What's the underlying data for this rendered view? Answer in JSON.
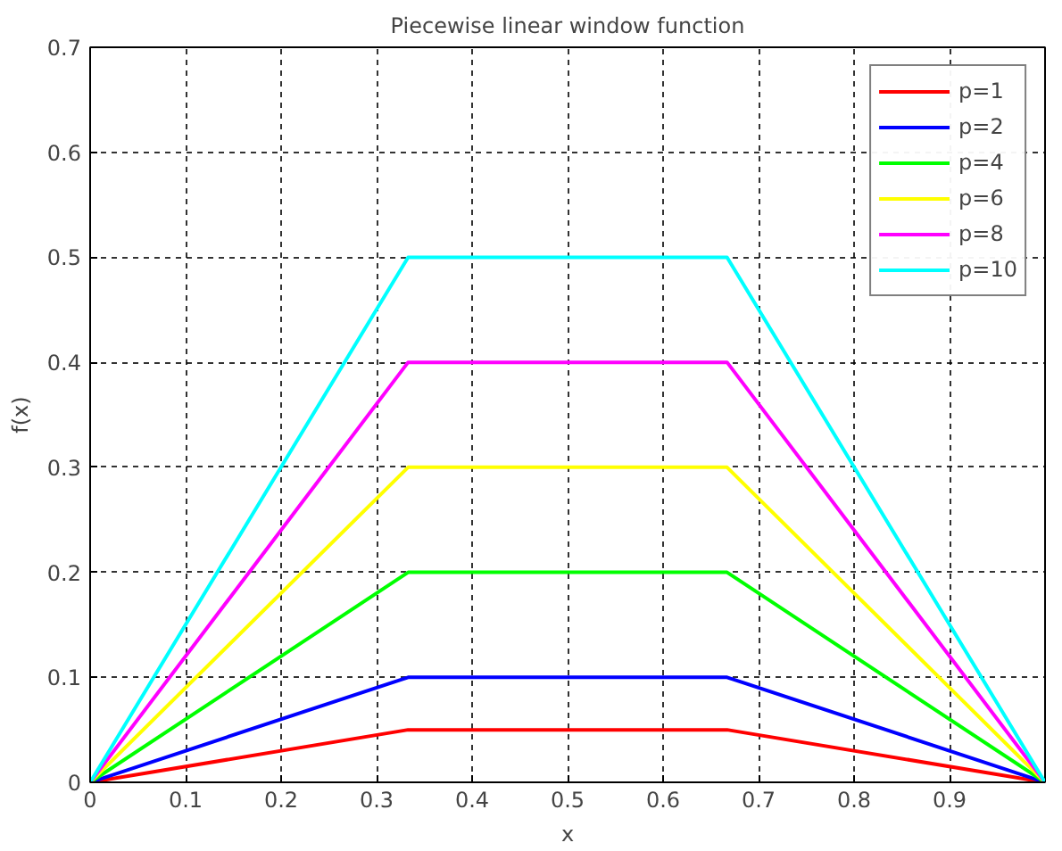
{
  "chart_data": {
    "type": "line",
    "title": "Piecewise linear window function",
    "xlabel": "x",
    "ylabel": "f(x)",
    "x": [
      0,
      0.333,
      0.667,
      1
    ],
    "series": [
      {
        "name": "p=1",
        "color": "#ff0000",
        "values": [
          0,
          0.05,
          0.05,
          0
        ]
      },
      {
        "name": "p=2",
        "color": "#0000ff",
        "values": [
          0,
          0.1,
          0.1,
          0
        ]
      },
      {
        "name": "p=4",
        "color": "#00ff00",
        "values": [
          0,
          0.2,
          0.2,
          0
        ]
      },
      {
        "name": "p=6",
        "color": "#ffff00",
        "values": [
          0,
          0.3,
          0.3,
          0
        ]
      },
      {
        "name": "p=8",
        "color": "#ff00ff",
        "values": [
          0,
          0.4,
          0.4,
          0
        ]
      },
      {
        "name": "p=10",
        "color": "#00ffff",
        "values": [
          0,
          0.5,
          0.5,
          0
        ]
      }
    ],
    "xlim": [
      0,
      1
    ],
    "ylim": [
      0,
      0.7
    ],
    "xticks": [
      0,
      0.1,
      0.2,
      0.3,
      0.4,
      0.5,
      0.6,
      0.7,
      0.8,
      0.9
    ],
    "yticks": [
      0,
      0.1,
      0.2,
      0.3,
      0.4,
      0.5,
      0.6,
      0.7
    ],
    "grid": true,
    "legend": "top right",
    "line_style": "solid"
  }
}
